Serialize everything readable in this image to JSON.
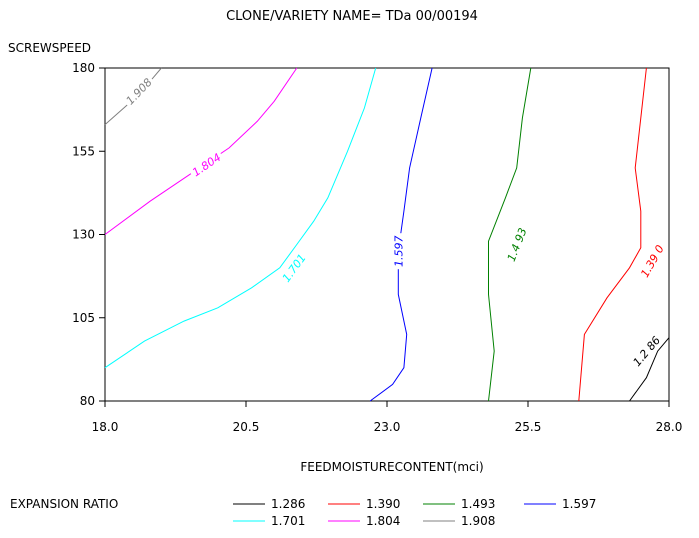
{
  "chart_data": {
    "type": "contour",
    "title": "CLONE/VARIETY NAME= TDa 00/00194",
    "xlabel": "FEEDMOISTURECONTENT(mci)",
    "ylabel": "SCREWSPEED",
    "xlim": [
      18.0,
      28.0
    ],
    "ylim": [
      80,
      180
    ],
    "x_ticks": [
      "18.0",
      "20.5",
      "23.0",
      "25.5",
      "28.0"
    ],
    "x_tick_values": [
      18.0,
      20.5,
      23.0,
      25.5,
      28.0
    ],
    "y_ticks": [
      "80",
      "105",
      "130",
      "155",
      "180"
    ],
    "y_tick_values": [
      80,
      105,
      130,
      155,
      180
    ],
    "grid": false,
    "legend_title": "EXPANSION RATIO",
    "legend_placement": "bottom",
    "series": [
      {
        "name": "1.286",
        "label": "1.2 86",
        "color": "#000000",
        "label_at": [
          27.6,
          95
        ],
        "points": [
          [
            27.3,
            80
          ],
          [
            27.6,
            87
          ],
          [
            27.8,
            95
          ],
          [
            28.0,
            99
          ]
        ]
      },
      {
        "name": "1.390",
        "label": "1.39 0",
        "color": "#ff0000",
        "label_at": [
          27.7,
          122
        ],
        "points": [
          [
            26.4,
            80
          ],
          [
            26.5,
            100
          ],
          [
            26.9,
            111
          ],
          [
            27.3,
            120
          ],
          [
            27.5,
            126
          ],
          [
            27.5,
            133
          ],
          [
            27.5,
            137
          ],
          [
            27.4,
            150
          ],
          [
            27.5,
            165
          ],
          [
            27.6,
            180
          ]
        ]
      },
      {
        "name": "1.493",
        "label": "1.4 93",
        "color": "#008000",
        "label_at": [
          25.3,
          127
        ],
        "points": [
          [
            24.8,
            80
          ],
          [
            24.9,
            95
          ],
          [
            24.8,
            112
          ],
          [
            24.8,
            128
          ],
          [
            25.1,
            141
          ],
          [
            25.3,
            150
          ],
          [
            25.4,
            165
          ],
          [
            25.55,
            180
          ]
        ]
      },
      {
        "name": "1.597",
        "label": "1.597",
        "color": "#0000ff",
        "label_at": [
          23.2,
          125
        ],
        "points": [
          [
            22.7,
            80
          ],
          [
            23.1,
            85
          ],
          [
            23.3,
            90
          ],
          [
            23.35,
            100
          ],
          [
            23.2,
            112
          ],
          [
            23.2,
            125
          ],
          [
            23.3,
            137
          ],
          [
            23.4,
            150
          ],
          [
            23.6,
            165
          ],
          [
            23.8,
            180
          ]
        ]
      },
      {
        "name": "1.701",
        "label": "1.701",
        "color": "#00ffff",
        "label_at": [
          21.35,
          120
        ],
        "points": [
          [
            18.0,
            90
          ],
          [
            18.7,
            98
          ],
          [
            19.4,
            104
          ],
          [
            20.0,
            108
          ],
          [
            20.6,
            114
          ],
          [
            21.1,
            120
          ],
          [
            21.4,
            127
          ],
          [
            21.7,
            134
          ],
          [
            21.95,
            141
          ],
          [
            22.3,
            155
          ],
          [
            22.6,
            168
          ],
          [
            22.8,
            180
          ]
        ]
      },
      {
        "name": "1.804",
        "label": "1.804",
        "color": "#ff00ff",
        "label_at": [
          19.8,
          151
        ],
        "points": [
          [
            18.0,
            130
          ],
          [
            18.8,
            140
          ],
          [
            19.5,
            148
          ],
          [
            20.2,
            156
          ],
          [
            20.7,
            164
          ],
          [
            21.0,
            170
          ],
          [
            21.4,
            180
          ]
        ]
      },
      {
        "name": "1.908",
        "label": "1.908",
        "color": "#808080",
        "label_at": [
          18.6,
          173
        ],
        "points": [
          [
            18.0,
            163
          ],
          [
            18.4,
            169
          ],
          [
            18.8,
            176
          ],
          [
            19.0,
            180
          ]
        ]
      }
    ]
  }
}
